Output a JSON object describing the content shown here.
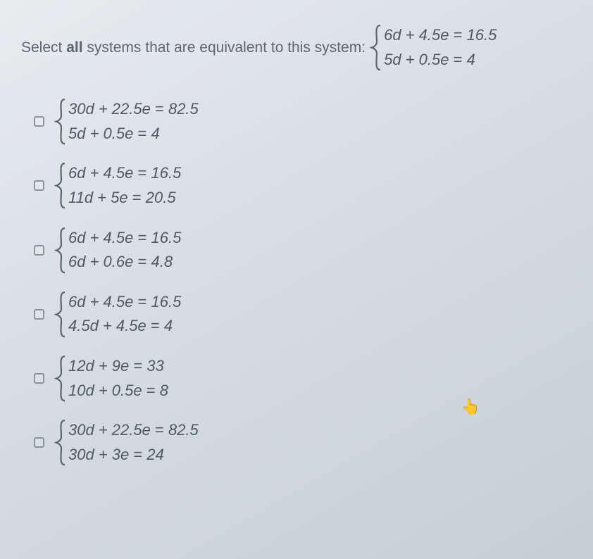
{
  "colors": {
    "text_muted": "#5b6770",
    "text_eq": "#4e5962",
    "checkbox_border": "#8a949c",
    "brace_stroke": "#5b6770"
  },
  "typography": {
    "prompt_fontsize": 21,
    "eq_fontsize": 22,
    "font_family": "Arial"
  },
  "prompt": {
    "prefix": "Select ",
    "bold": "all",
    "suffix": " systems that are equivalent to this system:"
  },
  "given_system": {
    "eq1_lhs": "6d + 4.5e",
    "eq1_rhs": "16.5",
    "eq2_lhs": "5d + 0.5e",
    "eq2_rhs": "4"
  },
  "options": [
    {
      "eq1_lhs": "30d + 22.5e",
      "eq1_rhs": "82.5",
      "eq2_lhs": "5d + 0.5e",
      "eq2_rhs": "4"
    },
    {
      "eq1_lhs": "6d + 4.5e",
      "eq1_rhs": "16.5",
      "eq2_lhs": "11d + 5e",
      "eq2_rhs": "20.5"
    },
    {
      "eq1_lhs": "6d + 4.5e",
      "eq1_rhs": "16.5",
      "eq2_lhs": "6d + 0.6e",
      "eq2_rhs": "4.8"
    },
    {
      "eq1_lhs": "6d + 4.5e",
      "eq1_rhs": "16.5",
      "eq2_lhs": "4.5d + 4.5e",
      "eq2_rhs": "4"
    },
    {
      "eq1_lhs": "12d + 9e",
      "eq1_rhs": "33",
      "eq2_lhs": "10d + 0.5e",
      "eq2_rhs": "8"
    },
    {
      "eq1_lhs": "30d + 22.5e",
      "eq1_rhs": "82.5",
      "eq2_lhs": "30d + 3e",
      "eq2_rhs": "24"
    }
  ],
  "cursor_glyph": "👆"
}
